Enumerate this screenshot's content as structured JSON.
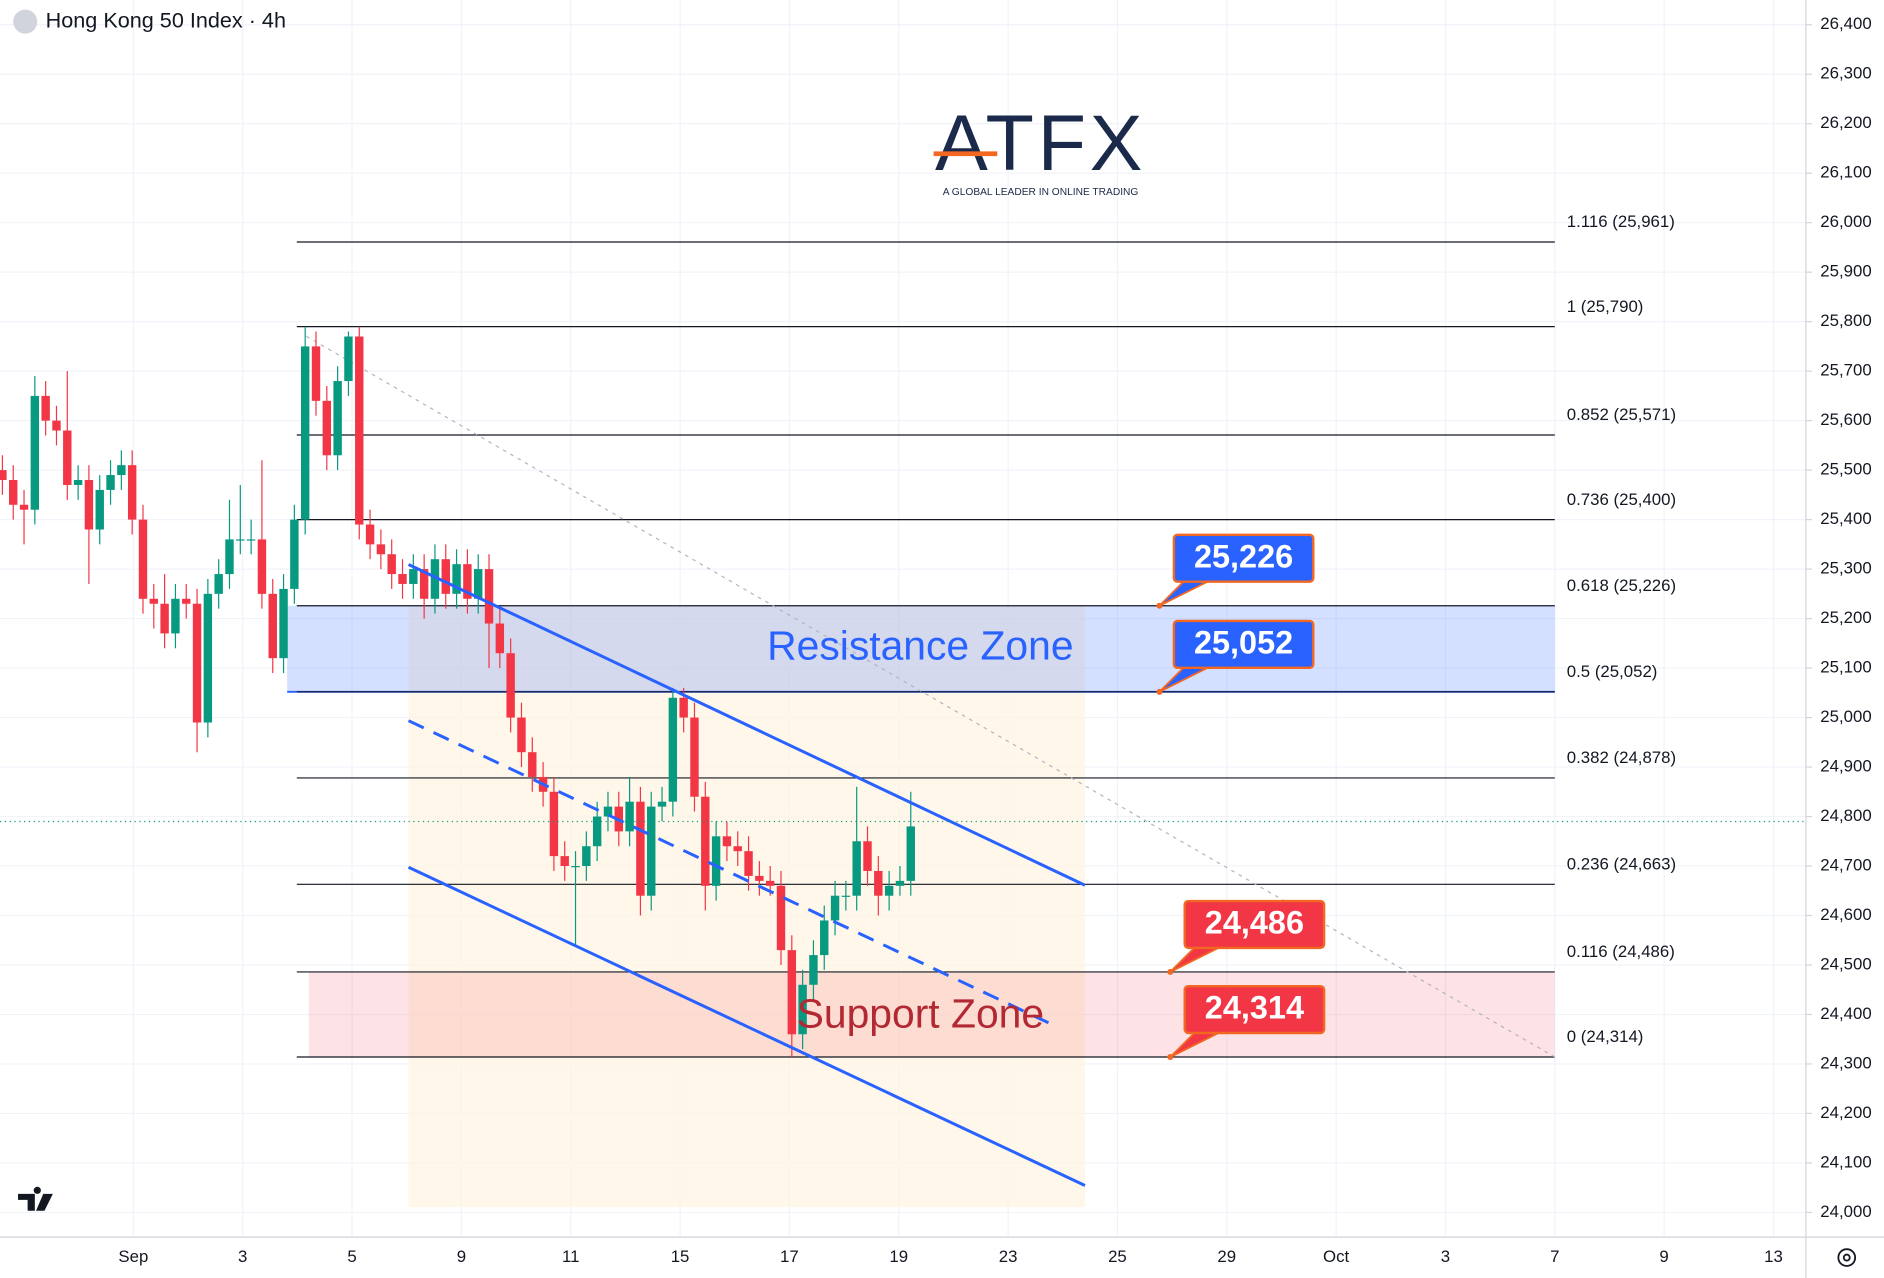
{
  "chart_data": {
    "type": "candlestick",
    "title": "Hong Kong 50 Index · 4h",
    "logo_text": "ATFX",
    "logo_tagline": "A GLOBAL LEADER IN ONLINE TRADING",
    "up_color": "#089981",
    "down_color": "#f23645",
    "ylim": [
      23950,
      26450
    ],
    "yticks": [
      {
        "value": 24000,
        "label": "24,000"
      },
      {
        "value": 24100,
        "label": "24,100"
      },
      {
        "value": 24200,
        "label": "24,200"
      },
      {
        "value": 24300,
        "label": "24,300"
      },
      {
        "value": 24400,
        "label": "24,400"
      },
      {
        "value": 24500,
        "label": "24,500"
      },
      {
        "value": 24600,
        "label": "24,600"
      },
      {
        "value": 24700,
        "label": "24,700"
      },
      {
        "value": 24800,
        "label": "24,800"
      },
      {
        "value": 24900,
        "label": "24,900"
      },
      {
        "value": 25000,
        "label": "25,000"
      },
      {
        "value": 25100,
        "label": "25,100"
      },
      {
        "value": 25200,
        "label": "25,200"
      },
      {
        "value": 25300,
        "label": "25,300"
      },
      {
        "value": 25400,
        "label": "25,400"
      },
      {
        "value": 25500,
        "label": "25,500"
      },
      {
        "value": 25600,
        "label": "25,600"
      },
      {
        "value": 25700,
        "label": "25,700"
      },
      {
        "value": 25800,
        "label": "25,800"
      },
      {
        "value": 25900,
        "label": "25,900"
      },
      {
        "value": 26000,
        "label": "26,000"
      },
      {
        "value": 26100,
        "label": "26,100"
      },
      {
        "value": 26200,
        "label": "26,200"
      },
      {
        "value": 26300,
        "label": "26,300"
      },
      {
        "value": 26400,
        "label": "26,400"
      }
    ],
    "xtick_labels": [
      "Sep",
      "3",
      "5",
      "9",
      "11",
      "15",
      "17",
      "19",
      "23",
      "25",
      "29",
      "Oct",
      "3",
      "7",
      "9",
      "13"
    ],
    "grid": true,
    "open": [
      25500,
      25480,
      25430,
      25420,
      25650,
      25600,
      25580,
      25470,
      25480,
      25380,
      25460,
      25490,
      25510,
      25400,
      25240,
      25230,
      25170,
      25240,
      25230,
      24990,
      25250,
      25290,
      25360,
      25360,
      25360,
      25250,
      25120,
      25260,
      25400,
      25750,
      25640,
      25530,
      25680,
      25770,
      25390,
      25350,
      25330,
      25290,
      25270,
      25300,
      25240,
      25320,
      25250,
      25310,
      25240,
      25300,
      25190,
      25130,
      25000,
      24930,
      24880,
      24850,
      24720,
      24700,
      24700,
      24740,
      24800,
      24820,
      24770,
      24830,
      24640,
      24820,
      24830,
      25040,
      25000,
      24840,
      24660,
      24760,
      24740,
      24730,
      24680,
      24670,
      24660,
      24530,
      24360,
      24460,
      24520,
      24590,
      24640,
      24640,
      24750,
      24690,
      24640,
      24660,
      24670
    ],
    "high": [
      25530,
      25510,
      25460,
      25690,
      25680,
      25630,
      25700,
      25510,
      25510,
      25490,
      25520,
      25540,
      25540,
      25430,
      25270,
      25290,
      25270,
      25270,
      25260,
      25280,
      25320,
      25440,
      25470,
      25400,
      25520,
      25280,
      25290,
      25430,
      25790,
      25780,
      25670,
      25710,
      25780,
      25790,
      25420,
      25380,
      25360,
      25320,
      25330,
      25330,
      25350,
      25350,
      25340,
      25340,
      25330,
      25330,
      25220,
      25160,
      25030,
      24960,
      24910,
      24880,
      24750,
      24730,
      24770,
      24830,
      24850,
      24850,
      24880,
      24860,
      24850,
      24860,
      25060,
      25060,
      25030,
      24870,
      24790,
      24790,
      24770,
      24760,
      24710,
      24700,
      24690,
      24560,
      24490,
      24550,
      24620,
      24670,
      24670,
      24860,
      24780,
      24720,
      24690,
      24700,
      24850
    ],
    "low": [
      25450,
      25400,
      25350,
      25390,
      25570,
      25550,
      25440,
      25440,
      25270,
      25350,
      25430,
      25460,
      25370,
      25210,
      25180,
      25140,
      25140,
      25200,
      24930,
      24960,
      25220,
      25260,
      25330,
      25330,
      25220,
      25090,
      25090,
      25230,
      25370,
      25610,
      25500,
      25500,
      25650,
      25360,
      25320,
      25300,
      25260,
      25240,
      25240,
      25200,
      25210,
      25220,
      25220,
      25210,
      25210,
      25100,
      25100,
      24970,
      24900,
      24850,
      24820,
      24690,
      24670,
      24540,
      24670,
      24710,
      24770,
      24740,
      24740,
      24600,
      24610,
      24790,
      24800,
      24970,
      24810,
      24610,
      24630,
      24710,
      24700,
      24650,
      24640,
      24640,
      24500,
      24314,
      24330,
      24430,
      24490,
      24560,
      24610,
      24610,
      24660,
      24600,
      24610,
      24640,
      24640
    ],
    "close": [
      25480,
      25430,
      25420,
      25650,
      25600,
      25580,
      25470,
      25480,
      25380,
      25460,
      25490,
      25510,
      25400,
      25240,
      25230,
      25170,
      25240,
      25230,
      24990,
      25250,
      25290,
      25360,
      25360,
      25360,
      25250,
      25120,
      25260,
      25400,
      25750,
      25640,
      25530,
      25680,
      25770,
      25390,
      25350,
      25330,
      25290,
      25270,
      25300,
      25240,
      25320,
      25250,
      25310,
      25240,
      25300,
      25190,
      25130,
      25000,
      24930,
      24880,
      24850,
      24720,
      24700,
      24700,
      24740,
      24800,
      24820,
      24770,
      24830,
      24640,
      24820,
      24830,
      25040,
      25000,
      24840,
      24660,
      24760,
      24740,
      24730,
      24680,
      24670,
      24660,
      24530,
      24360,
      24460,
      24520,
      24590,
      24640,
      24640,
      24750,
      24690,
      24640,
      24660,
      24670,
      24780
    ],
    "last_price": 24790,
    "fib_levels": [
      {
        "value": 25961,
        "label": "1.116 (25,961)"
      },
      {
        "value": 25790,
        "label": "1 (25,790)"
      },
      {
        "value": 25571,
        "label": "0.852 (25,571)"
      },
      {
        "value": 25400,
        "label": "0.736 (25,400)"
      },
      {
        "value": 25226,
        "label": "0.618 (25,226)"
      },
      {
        "value": 25052,
        "label": "0.5 (25,052)"
      },
      {
        "value": 24878,
        "label": "0.382 (24,878)"
      },
      {
        "value": 24663,
        "label": "0.236 (24,663)"
      },
      {
        "value": 24486,
        "label": "0.116 (24,486)"
      },
      {
        "value": 24314,
        "label": "0 (24,314)"
      }
    ],
    "zones": [
      {
        "label": "Resistance Zone",
        "top": 25226,
        "bottom": 25052,
        "color": "#2962ff"
      },
      {
        "label": "Support Zone",
        "top": 24486,
        "bottom": 24314,
        "color": "#f23645"
      }
    ],
    "callouts": [
      {
        "value": 25226,
        "label": "25,226",
        "color": "#2962ff"
      },
      {
        "value": 25052,
        "label": "25,052",
        "color": "#2962ff"
      },
      {
        "value": 24486,
        "label": "24,486",
        "color": "#f23645"
      },
      {
        "value": 24314,
        "label": "24,314",
        "color": "#f23645"
      }
    ]
  }
}
